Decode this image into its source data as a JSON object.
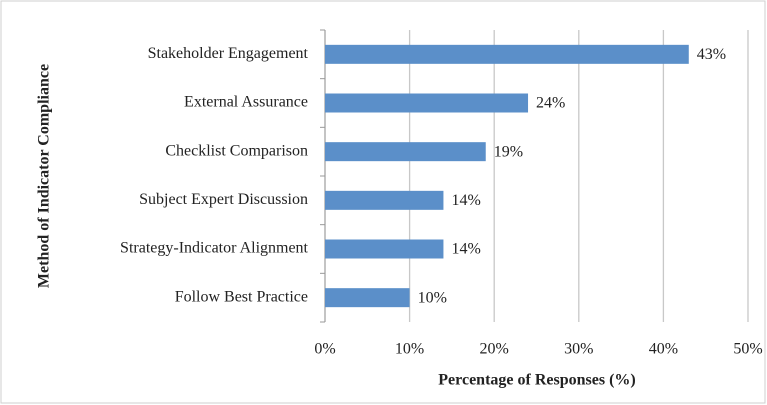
{
  "chart_data": {
    "type": "hbar",
    "xlabel": "Percentage of Responses (%)",
    "ylabel": "Method of Indicator Compliance",
    "categories": [
      "Stakeholder Engagement",
      "External Assurance",
      "Checklist Comparison",
      "Subject Expert Discussion",
      "Strategy-Indicator Alignment",
      "Follow Best Practice"
    ],
    "values": [
      43,
      24,
      19,
      14,
      14,
      10
    ],
    "value_labels": [
      "43%",
      "24%",
      "19%",
      "14%",
      "14%",
      "10%"
    ],
    "color": "#5b8fc9",
    "xlim": [
      0,
      50
    ],
    "xticks": [
      {
        "value": 0,
        "label": "0%"
      },
      {
        "value": 10,
        "label": "10%"
      },
      {
        "value": 20,
        "label": "20%"
      },
      {
        "value": 30,
        "label": "30%"
      },
      {
        "value": 40,
        "label": "40%"
      },
      {
        "value": 50,
        "label": "50%"
      }
    ],
    "grid": true
  }
}
